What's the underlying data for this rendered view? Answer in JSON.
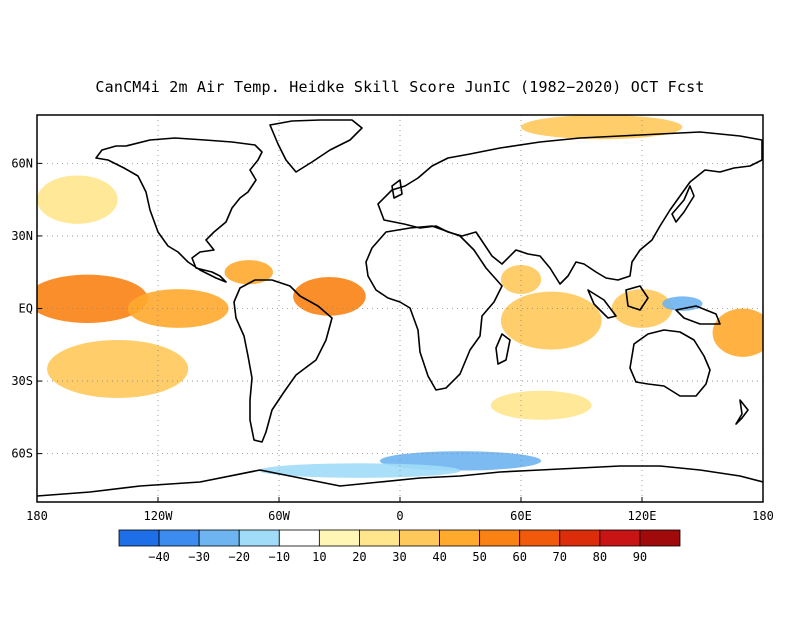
{
  "title": "CanCM4i 2m Air Temp. Heidke Skill Score JunIC (1982−2020) OCT Fcst",
  "map": {
    "lon_range": [
      -180,
      180
    ],
    "lat_range": [
      -80,
      80
    ],
    "background_color": "#ffffff",
    "coastline_color": "#000000",
    "gridline_style": "dotted-gray",
    "lat_ticks": [
      {
        "lat": 60,
        "label": "60N"
      },
      {
        "lat": 30,
        "label": "30N"
      },
      {
        "lat": 0,
        "label": "EQ"
      },
      {
        "lat": -30,
        "label": "30S"
      },
      {
        "lat": -60,
        "label": "60S"
      }
    ],
    "lon_ticks": [
      {
        "lon": -180,
        "label": "180"
      },
      {
        "lon": -120,
        "label": "120W"
      },
      {
        "lon": -60,
        "label": "60W"
      },
      {
        "lon": 0,
        "label": "0"
      },
      {
        "lon": 60,
        "label": "60E"
      },
      {
        "lon": 120,
        "label": "120E"
      },
      {
        "lon": 180,
        "label": "180"
      }
    ],
    "skill_regions": [
      {
        "name": "central-pacific-eq",
        "lon": -155,
        "lat": 4,
        "rlon": 30,
        "rlat": 10,
        "level": 50
      },
      {
        "name": "east-pacific-eq",
        "lon": -110,
        "lat": 0,
        "rlon": 25,
        "rlat": 8,
        "level": 40
      },
      {
        "name": "south-pacific",
        "lon": -140,
        "lat": -25,
        "rlon": 35,
        "rlat": 12,
        "level": 30
      },
      {
        "name": "north-pacific",
        "lon": -160,
        "lat": 45,
        "rlon": 20,
        "rlat": 10,
        "level": 20
      },
      {
        "name": "tropical-atlantic",
        "lon": -35,
        "lat": 5,
        "rlon": 18,
        "rlat": 8,
        "level": 50
      },
      {
        "name": "caribbean",
        "lon": -75,
        "lat": 15,
        "rlon": 12,
        "rlat": 5,
        "level": 40
      },
      {
        "name": "indian-ocean",
        "lon": 75,
        "lat": -5,
        "rlon": 25,
        "rlat": 12,
        "level": 30
      },
      {
        "name": "arabian-sea",
        "lon": 60,
        "lat": 12,
        "rlon": 10,
        "rlat": 6,
        "level": 30
      },
      {
        "name": "maritime-continent",
        "lon": 120,
        "lat": 0,
        "rlon": 15,
        "rlat": 8,
        "level": 30
      },
      {
        "name": "west-pacific-south",
        "lon": 170,
        "lat": -10,
        "rlon": 15,
        "rlat": 10,
        "level": 40
      },
      {
        "name": "arctic-siberia",
        "lon": 100,
        "lat": 75,
        "rlon": 40,
        "rlat": 5,
        "level": 30
      },
      {
        "name": "south-indian",
        "lon": 70,
        "lat": -40,
        "rlon": 25,
        "rlat": 6,
        "level": 20
      },
      {
        "name": "southern-ocean-neg",
        "lon": 30,
        "lat": -63,
        "rlon": 40,
        "rlat": 4,
        "level": -20
      },
      {
        "name": "antarctic-coast-neg",
        "lon": -20,
        "lat": -67,
        "rlon": 50,
        "rlat": 3,
        "level": -10
      },
      {
        "name": "nw-pacific-neg",
        "lon": 140,
        "lat": 2,
        "rlon": 10,
        "rlat": 3,
        "level": -20
      }
    ]
  },
  "colorbar": {
    "colors": [
      "#1e6ee8",
      "#3c8cf0",
      "#6eb4f0",
      "#a0dcf8",
      "#ffffff",
      "#fff5b4",
      "#ffe68c",
      "#ffc85a",
      "#ffaa2d",
      "#fa8214",
      "#f05a0a",
      "#dc2d0a",
      "#c81414",
      "#a00a0a"
    ],
    "labels": [
      "−40",
      "−30",
      "−20",
      "−10",
      "10",
      "20",
      "30",
      "40",
      "50",
      "60",
      "70",
      "80",
      "90"
    ]
  }
}
